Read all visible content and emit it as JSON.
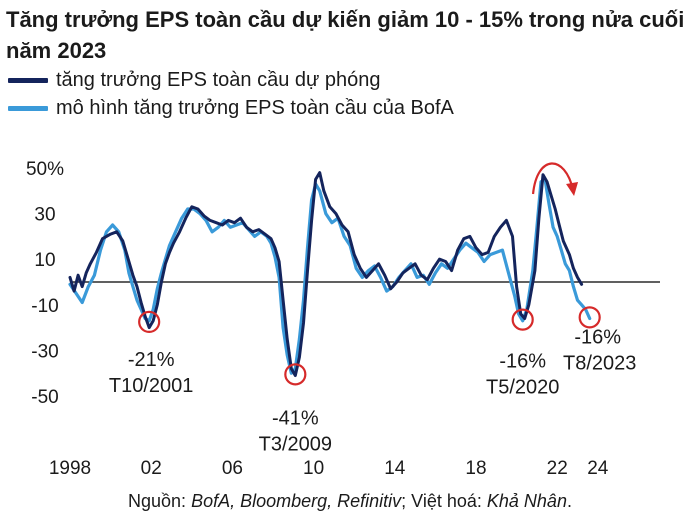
{
  "title": "Tăng trưởng EPS toàn cầu dự kiến giảm 10 - 15% trong nửa cuối năm 2023",
  "colors": {
    "forecast": "#14245c",
    "model": "#3a9ad9",
    "annotation": "#d62a2a",
    "axis": "#000000"
  },
  "chart_data": {
    "type": "line",
    "title": "Tăng trưởng EPS toàn cầu dự kiến giảm 10 - 15% trong nửa cuối năm 2023",
    "xlim": [
      1998,
      2024.5
    ],
    "ylim": [
      -50,
      50
    ],
    "y_ticks": [
      {
        "value": 50,
        "label": "50%"
      },
      {
        "value": 30,
        "label": "30"
      },
      {
        "value": 10,
        "label": "10"
      },
      {
        "value": -10,
        "label": "-10"
      },
      {
        "value": -30,
        "label": "-30"
      },
      {
        "value": -50,
        "label": "-50"
      }
    ],
    "x_ticks": [
      {
        "value": 1998,
        "label": "1998"
      },
      {
        "value": 2002,
        "label": "02"
      },
      {
        "value": 2006,
        "label": "06"
      },
      {
        "value": 2010,
        "label": "10"
      },
      {
        "value": 2014,
        "label": "14"
      },
      {
        "value": 2018,
        "label": "18"
      },
      {
        "value": 2022,
        "label": "22"
      },
      {
        "value": 2024,
        "label": "24"
      }
    ],
    "reference_line": 0,
    "legend_placement": "top-left",
    "series": [
      {
        "name": "tăng trưởng EPS toàn cầu dự phóng",
        "color": "#14245c",
        "points": [
          [
            1998.0,
            2
          ],
          [
            1998.2,
            -4
          ],
          [
            1998.4,
            3
          ],
          [
            1998.6,
            -2
          ],
          [
            1998.8,
            4
          ],
          [
            1999.0,
            8
          ],
          [
            1999.3,
            13
          ],
          [
            1999.6,
            19
          ],
          [
            2000.0,
            21
          ],
          [
            2000.3,
            22
          ],
          [
            2000.6,
            18
          ],
          [
            2000.9,
            9
          ],
          [
            2001.1,
            3
          ],
          [
            2001.3,
            -2
          ],
          [
            2001.5,
            -9
          ],
          [
            2001.7,
            -15
          ],
          [
            2001.9,
            -20
          ],
          [
            2002.1,
            -17
          ],
          [
            2002.3,
            -10
          ],
          [
            2002.5,
            0
          ],
          [
            2002.7,
            8
          ],
          [
            2002.9,
            13
          ],
          [
            2003.1,
            17
          ],
          [
            2003.4,
            22
          ],
          [
            2003.7,
            28
          ],
          [
            2004.0,
            33
          ],
          [
            2004.3,
            32
          ],
          [
            2004.6,
            29
          ],
          [
            2004.9,
            27
          ],
          [
            2005.2,
            26
          ],
          [
            2005.5,
            25
          ],
          [
            2005.8,
            27
          ],
          [
            2006.1,
            26
          ],
          [
            2006.4,
            28
          ],
          [
            2006.7,
            24
          ],
          [
            2007.0,
            22
          ],
          [
            2007.3,
            23
          ],
          [
            2007.6,
            21
          ],
          [
            2007.9,
            19
          ],
          [
            2008.1,
            15
          ],
          [
            2008.3,
            9
          ],
          [
            2008.5,
            -8
          ],
          [
            2008.7,
            -25
          ],
          [
            2008.9,
            -38
          ],
          [
            2009.1,
            -41
          ],
          [
            2009.3,
            -33
          ],
          [
            2009.5,
            -18
          ],
          [
            2009.7,
            5
          ],
          [
            2009.9,
            27
          ],
          [
            2010.1,
            45
          ],
          [
            2010.3,
            48
          ],
          [
            2010.5,
            40
          ],
          [
            2010.8,
            33
          ],
          [
            2011.1,
            30
          ],
          [
            2011.4,
            25
          ],
          [
            2011.7,
            22
          ],
          [
            2012.0,
            12
          ],
          [
            2012.3,
            6
          ],
          [
            2012.6,
            2
          ],
          [
            2012.9,
            5
          ],
          [
            2013.2,
            8
          ],
          [
            2013.5,
            3
          ],
          [
            2013.8,
            -3
          ],
          [
            2014.1,
            0
          ],
          [
            2014.4,
            4
          ],
          [
            2014.7,
            6
          ],
          [
            2015.0,
            8
          ],
          [
            2015.3,
            3
          ],
          [
            2015.6,
            1
          ],
          [
            2015.9,
            6
          ],
          [
            2016.2,
            10
          ],
          [
            2016.5,
            9
          ],
          [
            2016.8,
            5
          ],
          [
            2017.1,
            14
          ],
          [
            2017.4,
            19
          ],
          [
            2017.7,
            20
          ],
          [
            2018.0,
            15
          ],
          [
            2018.3,
            12
          ],
          [
            2018.6,
            13
          ],
          [
            2018.9,
            20
          ],
          [
            2019.2,
            24
          ],
          [
            2019.5,
            27
          ],
          [
            2019.8,
            20
          ],
          [
            2020.0,
            -2
          ],
          [
            2020.2,
            -14
          ],
          [
            2020.4,
            -16
          ],
          [
            2020.6,
            -10
          ],
          [
            2020.9,
            5
          ],
          [
            2021.1,
            28
          ],
          [
            2021.3,
            47
          ],
          [
            2021.5,
            44
          ],
          [
            2021.7,
            38
          ],
          [
            2021.9,
            32
          ],
          [
            2022.1,
            25
          ],
          [
            2022.3,
            18
          ],
          [
            2022.6,
            12
          ],
          [
            2022.8,
            6
          ],
          [
            2023.0,
            2
          ],
          [
            2023.2,
            -1
          ]
        ]
      },
      {
        "name": "mô hình tăng trưởng EPS toàn cầu của BofA",
        "color": "#3a9ad9",
        "points": [
          [
            1998.0,
            -1
          ],
          [
            1998.3,
            -5
          ],
          [
            1998.6,
            -9
          ],
          [
            1998.9,
            -2
          ],
          [
            1999.2,
            3
          ],
          [
            1999.5,
            14
          ],
          [
            1999.8,
            22
          ],
          [
            2000.1,
            25
          ],
          [
            2000.4,
            22
          ],
          [
            2000.7,
            14
          ],
          [
            2000.9,
            4
          ],
          [
            2001.1,
            -2
          ],
          [
            2001.3,
            -8
          ],
          [
            2001.5,
            -12
          ],
          [
            2001.7,
            -16
          ],
          [
            2001.9,
            -17
          ],
          [
            2002.1,
            -12
          ],
          [
            2002.3,
            -3
          ],
          [
            2002.5,
            4
          ],
          [
            2002.7,
            10
          ],
          [
            2002.9,
            16
          ],
          [
            2003.2,
            22
          ],
          [
            2003.5,
            28
          ],
          [
            2003.8,
            32
          ],
          [
            2004.1,
            32
          ],
          [
            2004.4,
            30
          ],
          [
            2004.7,
            27
          ],
          [
            2005.0,
            22
          ],
          [
            2005.3,
            24
          ],
          [
            2005.6,
            27
          ],
          [
            2005.9,
            24
          ],
          [
            2006.2,
            25
          ],
          [
            2006.5,
            26
          ],
          [
            2006.8,
            23
          ],
          [
            2007.1,
            20
          ],
          [
            2007.4,
            22
          ],
          [
            2007.7,
            20
          ],
          [
            2007.9,
            17
          ],
          [
            2008.1,
            11
          ],
          [
            2008.3,
            2
          ],
          [
            2008.5,
            -20
          ],
          [
            2008.7,
            -32
          ],
          [
            2008.9,
            -40
          ],
          [
            2009.1,
            -38
          ],
          [
            2009.3,
            -25
          ],
          [
            2009.5,
            -8
          ],
          [
            2009.7,
            15
          ],
          [
            2009.9,
            36
          ],
          [
            2010.1,
            43
          ],
          [
            2010.3,
            40
          ],
          [
            2010.6,
            30
          ],
          [
            2010.9,
            26
          ],
          [
            2011.2,
            28
          ],
          [
            2011.5,
            20
          ],
          [
            2011.8,
            16
          ],
          [
            2012.1,
            6
          ],
          [
            2012.4,
            2
          ],
          [
            2012.7,
            5
          ],
          [
            2013.0,
            7
          ],
          [
            2013.3,
            2
          ],
          [
            2013.6,
            -4
          ],
          [
            2013.9,
            -2
          ],
          [
            2014.2,
            2
          ],
          [
            2014.5,
            5
          ],
          [
            2014.8,
            8
          ],
          [
            2015.1,
            2
          ],
          [
            2015.4,
            3
          ],
          [
            2015.7,
            -1
          ],
          [
            2016.0,
            4
          ],
          [
            2016.3,
            8
          ],
          [
            2016.6,
            6
          ],
          [
            2016.9,
            10
          ],
          [
            2017.2,
            14
          ],
          [
            2017.5,
            17
          ],
          [
            2017.8,
            15
          ],
          [
            2018.1,
            13
          ],
          [
            2018.4,
            9
          ],
          [
            2018.7,
            12
          ],
          [
            2019.0,
            13
          ],
          [
            2019.3,
            14
          ],
          [
            2019.6,
            4
          ],
          [
            2019.9,
            -6
          ],
          [
            2020.1,
            -14
          ],
          [
            2020.3,
            -17
          ],
          [
            2020.5,
            -12
          ],
          [
            2020.8,
            5
          ],
          [
            2021.0,
            24
          ],
          [
            2021.2,
            44
          ],
          [
            2021.4,
            45
          ],
          [
            2021.6,
            34
          ],
          [
            2021.8,
            24
          ],
          [
            2022.0,
            20
          ],
          [
            2022.2,
            14
          ],
          [
            2022.4,
            8
          ],
          [
            2022.6,
            5
          ],
          [
            2022.8,
            -2
          ],
          [
            2023.0,
            -8
          ],
          [
            2023.2,
            -10
          ],
          [
            2023.4,
            -12
          ],
          [
            2023.6,
            -16
          ]
        ]
      }
    ],
    "annotations": [
      {
        "x": 2001.9,
        "y": -17.5,
        "label": "-21%",
        "sublabel": "T10/2001"
      },
      {
        "x": 2009.1,
        "y": -40.5,
        "label": "-41%",
        "sublabel": "T3/2009"
      },
      {
        "x": 2020.3,
        "y": -16.5,
        "label": "-16%",
        "sublabel": "T5/2020"
      },
      {
        "x": 2023.6,
        "y": -15.5,
        "label": "-16%",
        "sublabel": "T8/2023"
      }
    ]
  },
  "legend": {
    "forecast_label": "tăng trưởng EPS toàn cầu dự phóng",
    "model_label": "mô hình tăng trưởng EPS toàn cầu của BofA"
  },
  "source": {
    "prefix": "Nguồn: ",
    "sources": "BofA, Bloomberg, Refinitiv",
    "middle": "; Việt hoá: ",
    "translator": "Khả Nhân",
    "suffix": "."
  }
}
